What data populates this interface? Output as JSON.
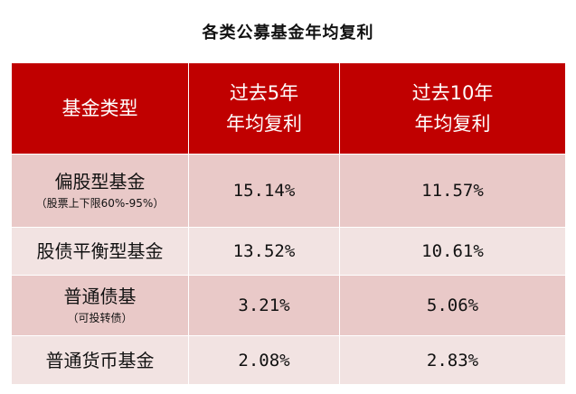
{
  "title": "各类公募基金年均复利",
  "table": {
    "headers": {
      "type": "基金类型",
      "five_year_line1": "过去5年",
      "five_year_line2": "年均复利",
      "ten_year_line1": "过去10年",
      "ten_year_line2": "年均复利"
    },
    "rows": [
      {
        "name": "偏股型基金",
        "note": "（股票上下限60%-95%）",
        "five_year": "15.14%",
        "ten_year": "11.57%"
      },
      {
        "name": "股债平衡型基金",
        "note": "",
        "five_year": "13.52%",
        "ten_year": "10.61%"
      },
      {
        "name": "普通债基",
        "note": "（可投转债）",
        "five_year": "3.21%",
        "ten_year": "5.06%"
      },
      {
        "name": "普通货币基金",
        "note": "",
        "five_year": "2.08%",
        "ten_year": "2.83%"
      }
    ]
  },
  "colors": {
    "header_bg": "#c00000",
    "row_dark": "#e9c9c8",
    "row_light": "#f2e3e2"
  }
}
